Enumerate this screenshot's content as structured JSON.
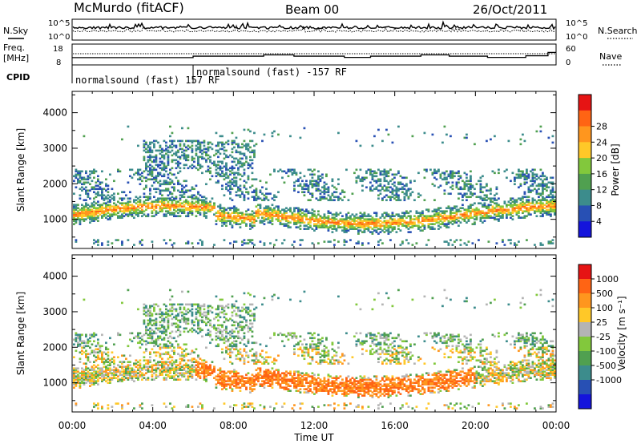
{
  "header": {
    "station": "McMurdo (fitACF)",
    "beam": "Beam 00",
    "date": "26/Oct/2011"
  },
  "noise_panel": {
    "left_label": "N.Sky",
    "right_label": "N.Search",
    "left_ticks": [
      "10^5",
      "10^0"
    ],
    "right_ticks": [
      "10^5",
      "10^0"
    ]
  },
  "freq_panel": {
    "left_label_line1": "Freq.",
    "left_label_line2": "[MHz]",
    "right_label": "Nave",
    "left_ticks": [
      "18",
      "8"
    ],
    "right_ticks": [
      "60",
      "0"
    ]
  },
  "cpid": {
    "label": "CPID",
    "segments": [
      {
        "text": "normalsound (fast) 157 RF",
        "start_hour": 0
      },
      {
        "text": "normalsound (fast) -157 RF",
        "start_hour": 6
      }
    ]
  },
  "colors": {
    "scale": [
      "#1414dc",
      "#2850b4",
      "#3c8c8c",
      "#50a050",
      "#82c83c",
      "#b4b4b4",
      "#ffc828",
      "#ff961e",
      "#ff6414",
      "#e61414"
    ]
  },
  "chart_data": [
    {
      "type": "heatmap",
      "name": "power",
      "ylabel": "Slant Range [km]",
      "y_ticks": [
        1000,
        2000,
        3000,
        4000
      ],
      "ylim": [
        180,
        4600
      ],
      "xlim": [
        0,
        24
      ],
      "colorbar": {
        "label": "Power [dB]",
        "ticks": [
          "4",
          "8",
          "12",
          "16",
          "20",
          "24",
          "28"
        ],
        "colors": [
          "#1414dc",
          "#2850b4",
          "#3c8c8c",
          "#50a050",
          "#82c83c",
          "#ffc828",
          "#ff961e",
          "#ff6414",
          "#e61414"
        ]
      }
    },
    {
      "type": "heatmap",
      "name": "velocity",
      "ylabel": "Slant Range [km]",
      "y_ticks": [
        1000,
        2000,
        3000,
        4000
      ],
      "ylim": [
        180,
        4600
      ],
      "xlim": [
        0,
        24
      ],
      "colorbar": {
        "label": "Velocity [m s⁻¹]",
        "ticks": [
          "1000",
          "500",
          "100",
          "25",
          "-25",
          "-100",
          "-500",
          "-1000"
        ],
        "colors": [
          "#1414dc",
          "#2850b4",
          "#3c8c8c",
          "#50a050",
          "#82c83c",
          "#b4b4b4",
          "#ffc828",
          "#ff961e",
          "#ff6414",
          "#e61414"
        ]
      }
    }
  ],
  "x_axis": {
    "label": "Time UT",
    "ticks": [
      "00:00",
      "04:00",
      "08:00",
      "12:00",
      "16:00",
      "20:00",
      "00:00"
    ],
    "tick_hours": [
      0,
      4,
      8,
      12,
      16,
      20,
      24
    ]
  }
}
